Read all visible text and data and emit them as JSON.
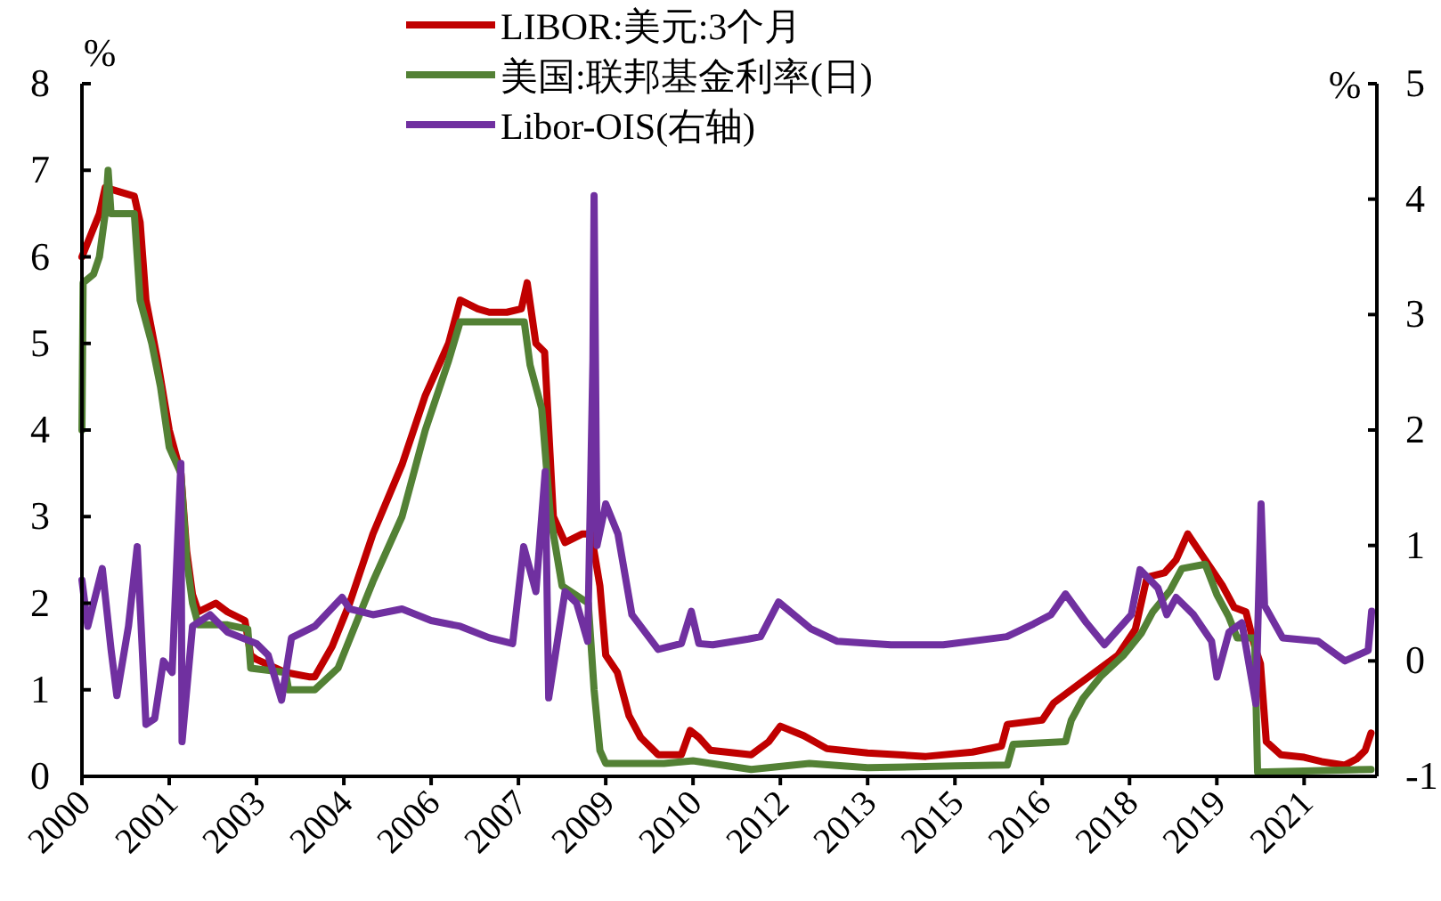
{
  "chart_data": {
    "type": "line",
    "ylabel": "%",
    "y2label": "%",
    "legend": "top",
    "grid": false,
    "marker": "none",
    "line_style": "solid",
    "xlim": [
      2000,
      2022.25
    ],
    "ylim": [
      0,
      8
    ],
    "yticks": [
      0,
      1,
      2,
      3,
      4,
      5,
      6,
      7,
      8
    ],
    "y2lim": [
      -1,
      5
    ],
    "y2ticks": [
      -1,
      0,
      1,
      2,
      3,
      4,
      5
    ],
    "xticks": [
      {
        "value": 2000,
        "label": "2000"
      },
      {
        "value": 2001.5,
        "label": "2001"
      },
      {
        "value": 2003,
        "label": "2003"
      },
      {
        "value": 2004.5,
        "label": "2004"
      },
      {
        "value": 2006,
        "label": "2006"
      },
      {
        "value": 2007.5,
        "label": "2007"
      },
      {
        "value": 2009,
        "label": "2009"
      },
      {
        "value": 2010.5,
        "label": "2010"
      },
      {
        "value": 2012,
        "label": "2012"
      },
      {
        "value": 2013.5,
        "label": "2013"
      },
      {
        "value": 2015,
        "label": "2015"
      },
      {
        "value": 2016.5,
        "label": "2016"
      },
      {
        "value": 2018,
        "label": "2018"
      },
      {
        "value": 2019.5,
        "label": "2019"
      },
      {
        "value": 2021,
        "label": "2021"
      }
    ],
    "series": [
      {
        "name": "LIBOR:美元:3个月",
        "color": "#c00000",
        "x": [
          2000.0,
          2000.3,
          2000.4,
          2000.9,
          2001.0,
          2001.1,
          2001.3,
          2001.5,
          2001.7,
          2001.8,
          2001.9,
          2002.0,
          2002.3,
          2002.5,
          2002.8,
          2002.9,
          2003.0,
          2003.5,
          2003.9,
          2004.0,
          2004.3,
          2004.6,
          2005.0,
          2005.5,
          2005.9,
          2006.3,
          2006.5,
          2006.8,
          2007.0,
          2007.3,
          2007.55,
          2007.65,
          2007.8,
          2007.95,
          2008.1,
          2008.3,
          2008.6,
          2008.75,
          2008.9,
          2009.0,
          2009.2,
          2009.4,
          2009.6,
          2009.9,
          2010.3,
          2010.45,
          2010.6,
          2010.8,
          2011.5,
          2011.8,
          2012.0,
          2012.4,
          2012.8,
          2013.5,
          2014.5,
          2015.3,
          2015.8,
          2015.9,
          2016.5,
          2016.7,
          2017.3,
          2017.8,
          2018.1,
          2018.3,
          2018.6,
          2018.8,
          2019.0,
          2019.2,
          2019.4,
          2019.6,
          2019.8,
          2020.0,
          2020.15,
          2020.25,
          2020.35,
          2020.6,
          2021.0,
          2021.3,
          2021.7,
          2021.9,
          2022.05,
          2022.15
        ],
        "values": [
          6.0,
          6.5,
          6.8,
          6.7,
          6.4,
          5.5,
          4.8,
          4.0,
          3.5,
          2.6,
          2.1,
          1.9,
          2.0,
          1.9,
          1.8,
          1.4,
          1.35,
          1.2,
          1.15,
          1.15,
          1.5,
          2.0,
          2.8,
          3.6,
          4.4,
          5.0,
          5.5,
          5.4,
          5.36,
          5.36,
          5.4,
          5.7,
          5.0,
          4.9,
          3.0,
          2.7,
          2.8,
          2.8,
          2.2,
          1.4,
          1.2,
          0.7,
          0.45,
          0.25,
          0.25,
          0.53,
          0.45,
          0.3,
          0.25,
          0.4,
          0.58,
          0.47,
          0.32,
          0.27,
          0.23,
          0.28,
          0.35,
          0.6,
          0.65,
          0.85,
          1.15,
          1.4,
          1.7,
          2.3,
          2.35,
          2.5,
          2.8,
          2.6,
          2.4,
          2.2,
          1.95,
          1.9,
          1.5,
          1.3,
          0.4,
          0.25,
          0.22,
          0.17,
          0.13,
          0.2,
          0.3,
          0.5
        ]
      },
      {
        "name": "美国:联邦基金利率(日)",
        "color": "#538135",
        "x": [
          2000.0,
          2000.02,
          2000.2,
          2000.3,
          2000.4,
          2000.45,
          2000.5,
          2000.9,
          2001.0,
          2001.2,
          2001.35,
          2001.5,
          2001.7,
          2001.8,
          2001.9,
          2002.0,
          2002.5,
          2002.85,
          2002.9,
          2003.5,
          2003.55,
          2004.0,
          2004.4,
          2004.7,
          2005.0,
          2005.5,
          2005.9,
          2006.3,
          2006.5,
          2007.0,
          2007.6,
          2007.7,
          2007.9,
          2008.05,
          2008.25,
          2008.7,
          2008.8,
          2008.9,
          2009.0,
          2010.0,
          2010.5,
          2011.5,
          2012.5,
          2013.5,
          2015.0,
          2015.9,
          2016.0,
          2016.9,
          2017.0,
          2017.2,
          2017.5,
          2017.9,
          2018.2,
          2018.4,
          2018.7,
          2018.9,
          2019.3,
          2019.5,
          2019.7,
          2019.85,
          2020.15,
          2020.2,
          2022.15
        ],
        "values": [
          4.0,
          5.7,
          5.8,
          6.0,
          6.5,
          7.0,
          6.5,
          6.5,
          5.5,
          5.0,
          4.5,
          3.8,
          3.5,
          2.5,
          2.0,
          1.75,
          1.75,
          1.7,
          1.25,
          1.2,
          1.0,
          1.0,
          1.25,
          1.75,
          2.25,
          3.0,
          4.0,
          4.8,
          5.25,
          5.25,
          5.25,
          4.75,
          4.25,
          3.0,
          2.2,
          2.0,
          1.0,
          0.3,
          0.15,
          0.15,
          0.18,
          0.08,
          0.15,
          0.1,
          0.12,
          0.13,
          0.37,
          0.4,
          0.65,
          0.9,
          1.15,
          1.4,
          1.65,
          1.9,
          2.15,
          2.4,
          2.45,
          2.1,
          1.85,
          1.6,
          1.6,
          0.05,
          0.08
        ]
      },
      {
        "name": "Libor-OIS(右轴)",
        "color": "#7030a0",
        "axis": "y2",
        "x": [
          2000.0,
          2000.1,
          2000.35,
          2000.5,
          2000.6,
          2000.8,
          2000.95,
          2001.1,
          2001.25,
          2001.4,
          2001.55,
          2001.7,
          2001.72,
          2001.9,
          2002.2,
          2002.5,
          2003.0,
          2003.2,
          2003.43,
          2003.6,
          2004.0,
          2004.47,
          2004.6,
          2005.0,
          2005.5,
          2006.0,
          2006.5,
          2007.0,
          2007.4,
          2007.59,
          2007.8,
          2007.96,
          2008.02,
          2008.3,
          2008.5,
          2008.69,
          2008.78,
          2008.8,
          2008.85,
          2009.0,
          2009.21,
          2009.45,
          2009.6,
          2009.9,
          2010.3,
          2010.47,
          2010.6,
          2010.84,
          2011.45,
          2011.66,
          2011.97,
          2012.52,
          2012.98,
          2013.9,
          2014.8,
          2015.89,
          2016.35,
          2016.65,
          2016.9,
          2017.26,
          2017.57,
          2018.03,
          2018.18,
          2018.49,
          2018.64,
          2018.8,
          2019.1,
          2019.41,
          2019.5,
          2019.71,
          2019.93,
          2020.17,
          2020.26,
          2020.32,
          2020.63,
          2021.24,
          2021.7,
          2022.1,
          2022.16
        ],
        "values": [
          0.7,
          0.3,
          0.8,
          0.1,
          -0.3,
          0.3,
          0.99,
          -0.55,
          -0.5,
          0.0,
          -0.1,
          1.71,
          -0.7,
          0.3,
          0.4,
          0.25,
          0.15,
          0.05,
          -0.34,
          0.2,
          0.3,
          0.55,
          0.45,
          0.4,
          0.45,
          0.35,
          0.3,
          0.2,
          0.15,
          0.99,
          0.6,
          1.64,
          -0.32,
          0.6,
          0.5,
          0.17,
          2.6,
          4.03,
          1.0,
          1.36,
          1.1,
          0.4,
          0.3,
          0.1,
          0.15,
          0.43,
          0.15,
          0.14,
          0.19,
          0.21,
          0.51,
          0.28,
          0.17,
          0.14,
          0.14,
          0.21,
          0.32,
          0.4,
          0.58,
          0.33,
          0.14,
          0.4,
          0.79,
          0.63,
          0.4,
          0.55,
          0.4,
          0.17,
          -0.14,
          0.25,
          0.33,
          -0.37,
          1.36,
          0.48,
          0.2,
          0.17,
          0.0,
          0.09,
          0.43
        ]
      }
    ]
  }
}
